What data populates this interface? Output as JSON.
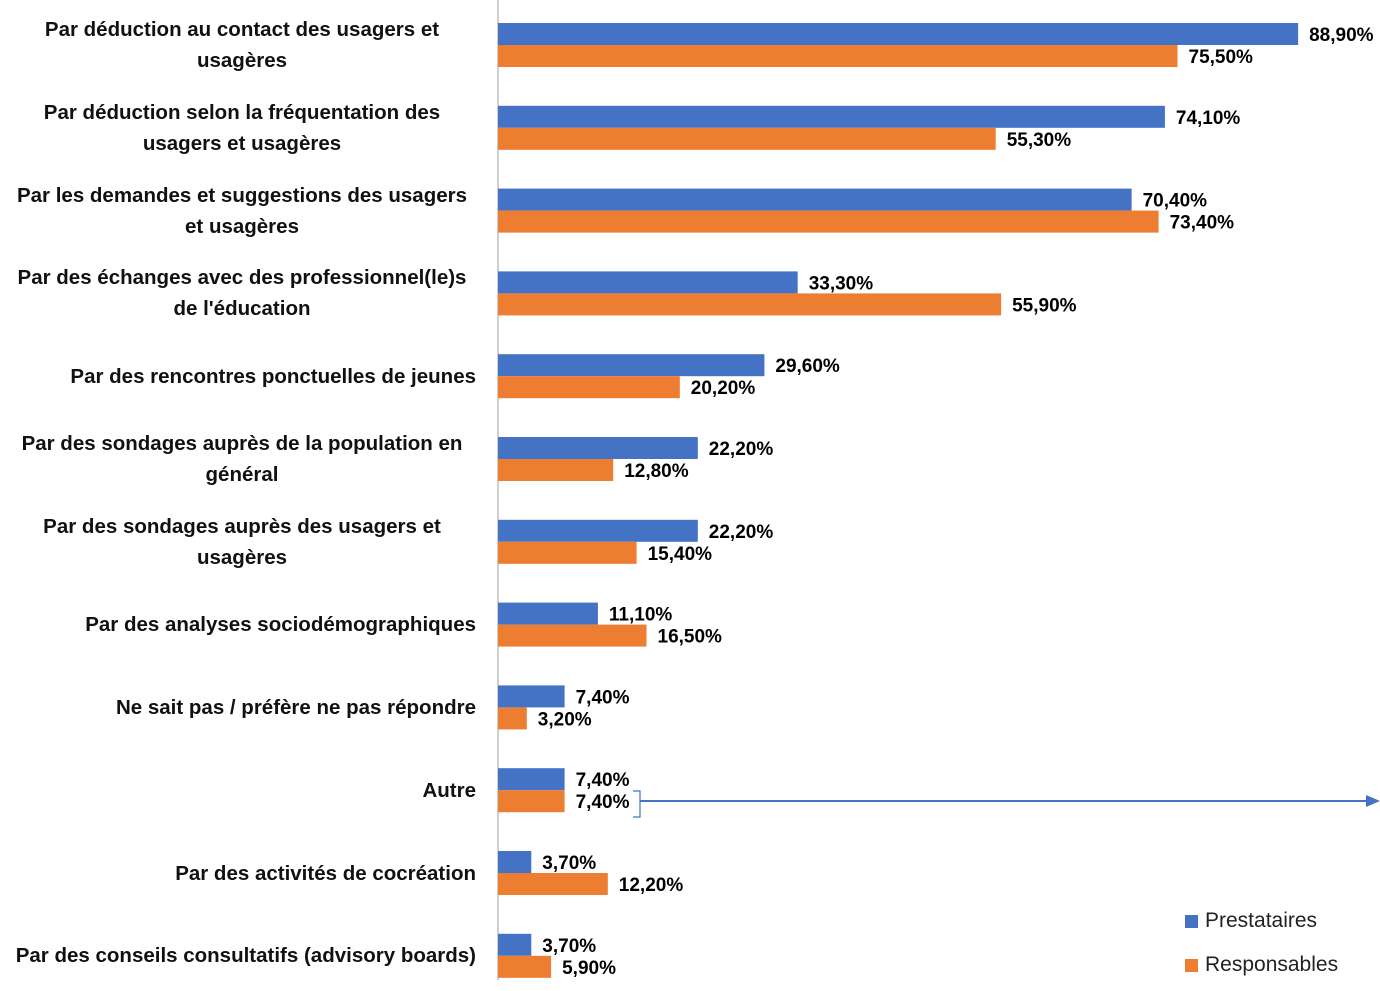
{
  "chart_data": {
    "type": "bar",
    "orientation": "horizontal",
    "categories": [
      "Par déduction au contact des usagers et usagères",
      "Par déduction selon la fréquentation des usagers et usagères",
      "Par les demandes et suggestions des usagers et usagères",
      "Par des échanges avec des professionnel(le)s de l'éducation",
      "Par des rencontres ponctuelles de jeunes",
      "Par des sondages auprès de la population en général",
      "Par des sondages auprès des usagers et usagères",
      "Par des analyses sociodémographiques",
      "Ne sait pas / préfère ne pas répondre",
      "Autre",
      "Par des activités de cocréation",
      "Par des conseils consultatifs (advisory boards)"
    ],
    "series": [
      {
        "name": "Prestataires",
        "color": "#4472c4",
        "values": [
          88.9,
          74.1,
          70.4,
          33.3,
          29.6,
          22.2,
          22.2,
          11.1,
          7.4,
          7.4,
          3.7,
          3.7
        ],
        "value_labels": [
          "88,90%",
          "74,10%",
          "70,40%",
          "33,30%",
          "29,60%",
          "22,20%",
          "22,20%",
          "11,10%",
          "7,40%",
          "7,40%",
          "3,70%",
          "3,70%"
        ]
      },
      {
        "name": "Responsables",
        "color": "#ed7d31",
        "values": [
          75.5,
          55.3,
          73.4,
          55.9,
          20.2,
          12.8,
          15.4,
          16.5,
          3.2,
          7.4,
          12.2,
          5.9
        ],
        "value_labels": [
          "75,50%",
          "55,30%",
          "73,40%",
          "55,90%",
          "20,20%",
          "12,80%",
          "15,40%",
          "16,50%",
          "3,20%",
          "7,40%",
          "12,20%",
          "5,90%"
        ]
      }
    ],
    "xlim": [
      0,
      100
    ],
    "legend": "bottom-right"
  }
}
